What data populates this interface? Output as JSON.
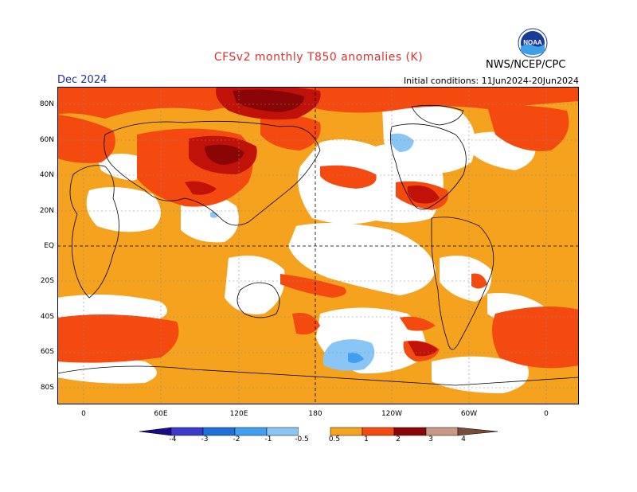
{
  "title": "CFSv2 monthly T850 anomalies (K)",
  "month": "Dec 2024",
  "initial_conditions": "Initial conditions: 11Jun2024-20Jun2024",
  "agency": "NWS/NCEP/CPC",
  "logo_text": "NOAA",
  "lat_labels": [
    "80N",
    "60N",
    "40N",
    "20N",
    "EQ",
    "20S",
    "40S",
    "60S",
    "80S"
  ],
  "lon_labels": [
    "0",
    "60E",
    "120E",
    "180",
    "120W",
    "60W",
    "0"
  ],
  "colorbar": {
    "labels": [
      "-4",
      "-3",
      "-2",
      "-1",
      "-0.5",
      "0.5",
      "1",
      "2",
      "3",
      "4"
    ],
    "colors": [
      "#1a0a8c",
      "#3a3acb",
      "#1e6fd9",
      "#3f9ff0",
      "#8ac6f5",
      "#ffffff",
      "#f5a21e",
      "#f54a0f",
      "#c01208",
      "#8a0606",
      "#c89a86",
      "#7a4a3a"
    ]
  },
  "anomaly_colors": {
    "weak_warm": "#f5a21e",
    "moderate_warm": "#f54a0f",
    "strong_warm": "#c01208",
    "very_strong_warm": "#8a0606",
    "weak_cold": "#8ac6f5",
    "moderate_cold": "#3f9ff0"
  }
}
